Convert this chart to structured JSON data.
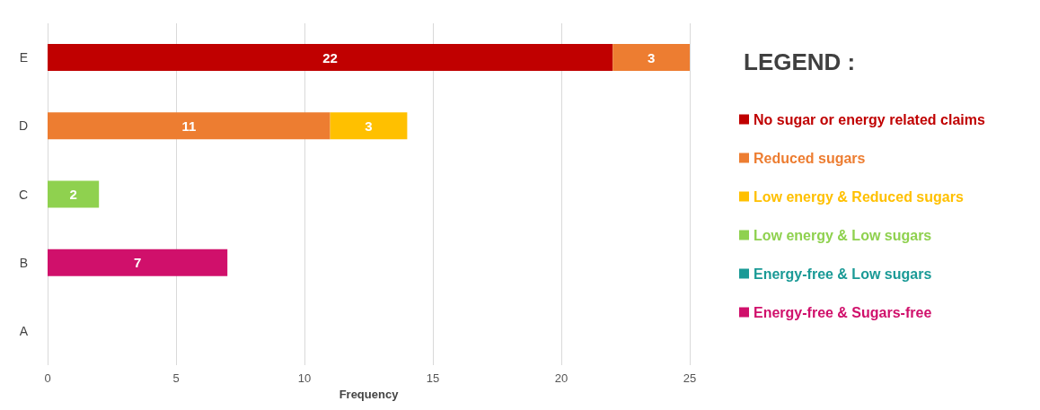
{
  "chart_data": {
    "type": "bar",
    "orientation": "horizontal",
    "stacked": true,
    "xlabel": "Frequency",
    "legend_title": "LEGEND :",
    "categories": [
      "E",
      "D",
      "C",
      "B",
      "A"
    ],
    "series": [
      {
        "name": "No sugar or energy related claims",
        "color": "#c00000",
        "values": [
          22,
          null,
          null,
          null,
          null
        ]
      },
      {
        "name": "Reduced sugars",
        "color": "#ed7d31",
        "values": [
          3,
          11,
          null,
          null,
          null
        ]
      },
      {
        "name": "Low energy & Reduced sugars",
        "color": "#ffc000",
        "values": [
          null,
          3,
          null,
          null,
          null
        ]
      },
      {
        "name": "Low energy & Low sugars",
        "color": "#8fd14f",
        "values": [
          null,
          null,
          2,
          null,
          null
        ]
      },
      {
        "name": "Energy-free & Low sugars",
        "color": "#1a9a96",
        "values": [
          null,
          null,
          null,
          null,
          null
        ]
      },
      {
        "name": "Energy-free & Sugars-free",
        "color": "#d0106b",
        "values": [
          null,
          null,
          null,
          7,
          null
        ]
      }
    ],
    "xlim": [
      0,
      25
    ],
    "xticks": [
      0,
      5,
      10,
      15,
      20,
      25
    ],
    "grid": "x",
    "legend": "right",
    "data_labels": true
  }
}
